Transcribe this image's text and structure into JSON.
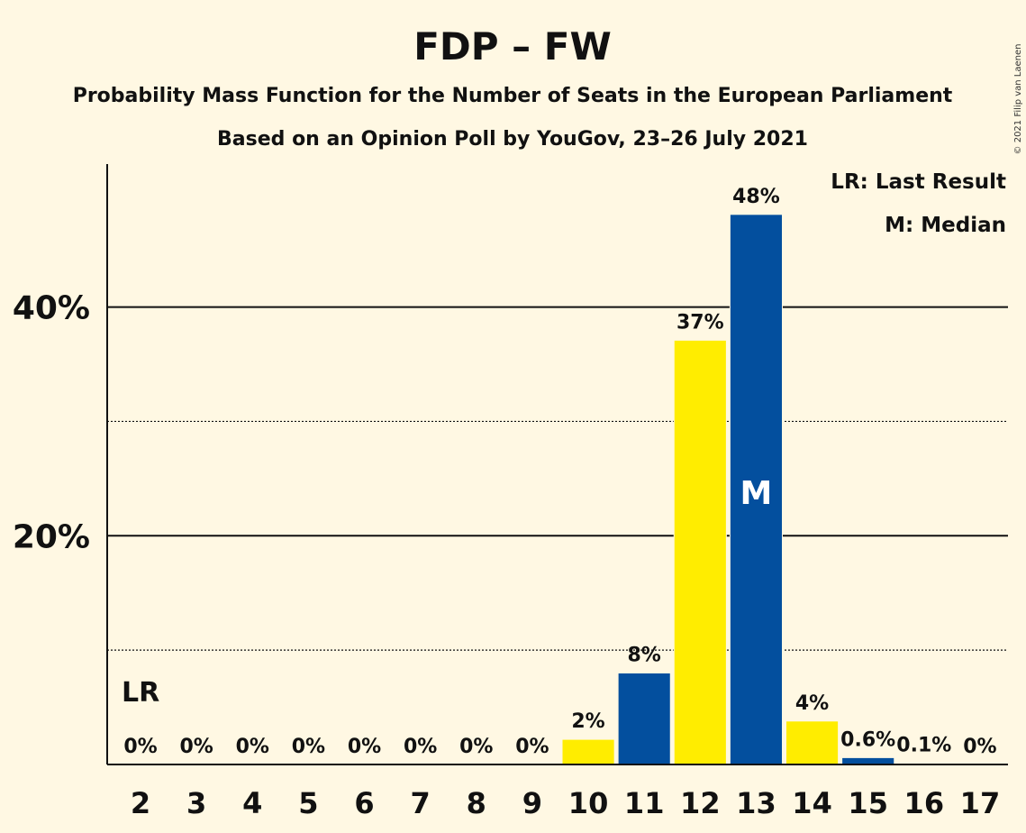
{
  "chart_data": {
    "type": "bar",
    "title": "FDP – FW",
    "subtitle": "Probability Mass Function for the Number of Seats in the European Parliament",
    "subtitle2": "Based on an Opinion Poll by YouGov, 23–26 July 2021",
    "copyright": "© 2021 Filip van Laenen",
    "categories": [
      "2",
      "3",
      "4",
      "5",
      "6",
      "7",
      "8",
      "9",
      "10",
      "11",
      "12",
      "13",
      "14",
      "15",
      "16",
      "17"
    ],
    "values": [
      0,
      0,
      0,
      0,
      0,
      0,
      0,
      0,
      2.2,
      8.0,
      37.1,
      48.1,
      3.8,
      0.6,
      0.1,
      0
    ],
    "data_labels": [
      "0%",
      "0%",
      "0%",
      "0%",
      "0%",
      "0%",
      "0%",
      "0%",
      "2%",
      "8%",
      "37%",
      "48%",
      "4%",
      "0.6%",
      "0.1%",
      "0%"
    ],
    "bar_colors": [
      "#FFED00",
      "#034F9E",
      "#FFED00",
      "#034F9E",
      "#FFED00",
      "#034F9E",
      "#FFED00",
      "#034F9E",
      "#FFED00",
      "#034F9E",
      "#FFED00",
      "#034F9E",
      "#FFED00",
      "#034F9E",
      "#FFED00",
      "#034F9E"
    ],
    "ylim": [
      0,
      52.5
    ],
    "yticks_major": [
      20,
      40
    ],
    "ytick_labels": [
      "20%",
      "40%"
    ],
    "yticks_minor": [
      10,
      30
    ],
    "last_result_category": "2",
    "last_result_marker": "LR",
    "median_category": "13",
    "median_marker": "M",
    "legend": [
      "LR: Last Result",
      "M: Median"
    ],
    "legend_position": "top-right",
    "grid": true
  }
}
